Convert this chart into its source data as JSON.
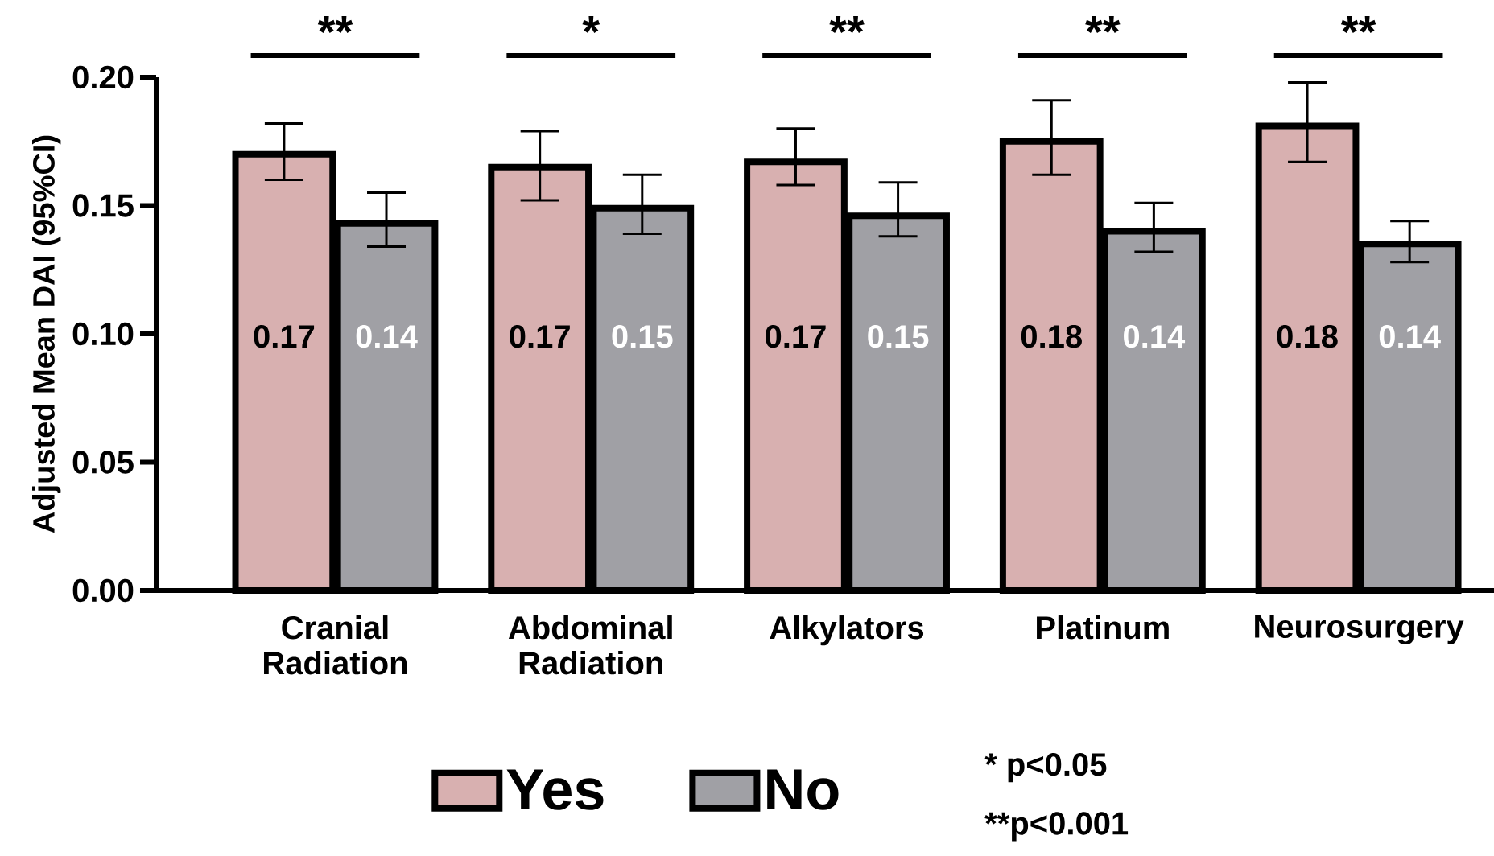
{
  "chart_data": {
    "type": "bar",
    "ylabel": "Adjusted Mean DAI (95%CI)",
    "categories": [
      "Cranial Radiation",
      "Abdominal Radiation",
      "Alkylators",
      "Platinum",
      "Neurosurgery"
    ],
    "series": [
      {
        "name": "Yes",
        "color": "#d8b0b0",
        "values": [
          0.17,
          0.165,
          0.167,
          0.175,
          0.181
        ],
        "errors": [
          [
            0.16,
            0.182
          ],
          [
            0.152,
            0.179
          ],
          [
            0.158,
            0.18
          ],
          [
            0.162,
            0.191
          ],
          [
            0.167,
            0.198
          ]
        ],
        "value_labels": [
          "0.17",
          "0.17",
          "0.17",
          "0.18",
          "0.18"
        ]
      },
      {
        "name": "No",
        "color": "#a0a0a5",
        "values": [
          0.143,
          0.149,
          0.146,
          0.14,
          0.135
        ],
        "errors": [
          [
            0.134,
            0.155
          ],
          [
            0.139,
            0.162
          ],
          [
            0.138,
            0.159
          ],
          [
            0.132,
            0.151
          ],
          [
            0.128,
            0.144
          ]
        ],
        "value_labels": [
          "0.14",
          "0.15",
          "0.15",
          "0.14",
          "0.14"
        ]
      }
    ],
    "ylim": [
      0,
      0.2
    ],
    "yticks": [
      {
        "value": 0,
        "label": "0.00"
      },
      {
        "value": 0.05,
        "label": "0.05"
      },
      {
        "value": 0.1,
        "label": "0.10"
      },
      {
        "value": 0.15,
        "label": "0.15"
      },
      {
        "value": 0.2,
        "label": "0.20"
      }
    ],
    "legend": "bottom",
    "annotations": [
      "**",
      "*",
      "**",
      "**",
      "**",
      "* p<0.05",
      "**p<0.001"
    ]
  }
}
